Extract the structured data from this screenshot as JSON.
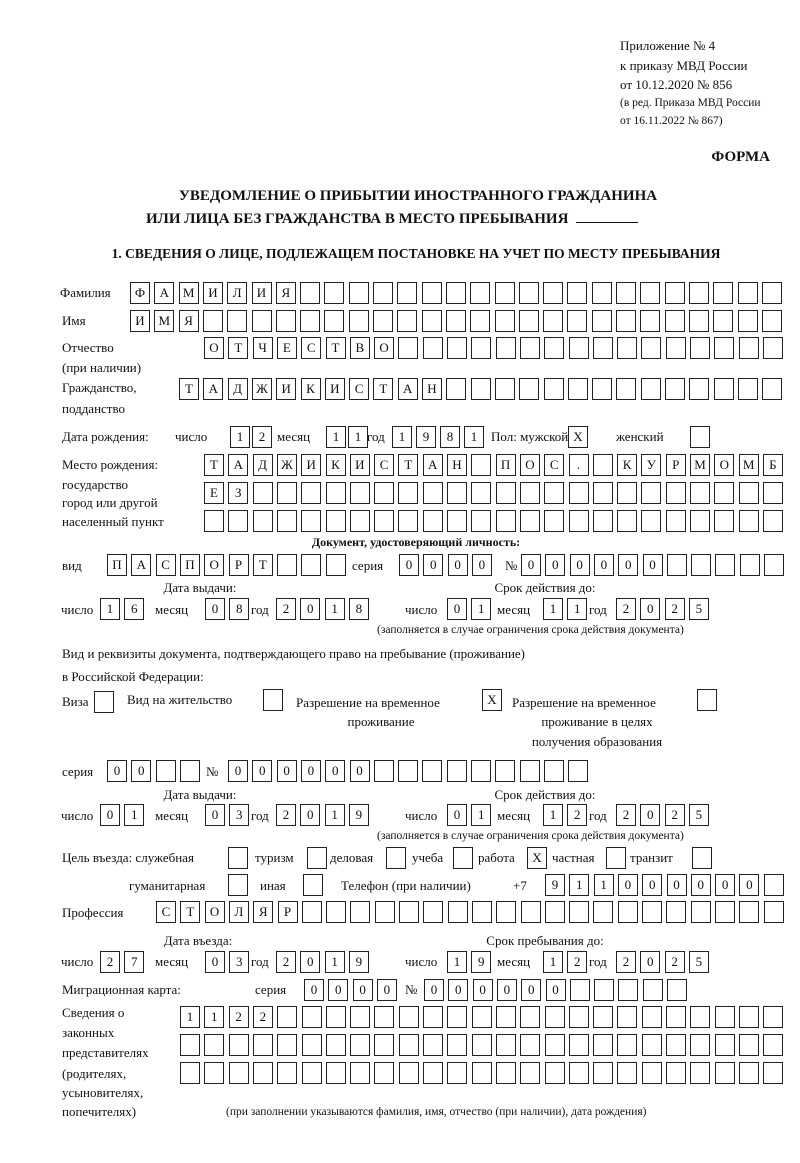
{
  "header": {
    "appendix": "Приложение № 4",
    "order": "к приказу МВД России",
    "order_date": "от 10.12.2020 № 856",
    "revision": "(в ред. Приказа МВД России",
    "revision_date": "от 16.11.2022 № 867)",
    "form_label": "ФОРМА",
    "title_line1": "УВЕДОМЛЕНИЕ О ПРИБЫТИИ ИНОСТРАННОГО ГРАЖДАНИНА",
    "title_line2": "ИЛИ ЛИЦА БЕЗ ГРАЖДАНСТВА В МЕСТО ПРЕБЫВАНИЯ",
    "section1": "1. СВЕДЕНИЯ О ЛИЦЕ, ПОДЛЕЖАЩЕМ ПОСТАНОВКЕ НА УЧЕТ ПО МЕСТУ ПРЕБЫВАНИЯ"
  },
  "labels": {
    "surname": "Фамилия",
    "name": "Имя",
    "patronymic": "Отчество",
    "patronymic_note": "(при наличии)",
    "citizenship": "Гражданство,",
    "citizenship2": "подданство",
    "birth_date": "Дата рождения:",
    "day": "число",
    "month": "месяц",
    "year": "год",
    "sex": "Пол: мужской",
    "female": "женский",
    "birth_place": "Место рождения:",
    "birth_place2": "государство",
    "birth_place3": "город или другой",
    "birth_place4": "населенный пункт",
    "id_doc": "Документ, удостоверяющий личность:",
    "kind": "вид",
    "series": "серия",
    "number": "№",
    "issue_date": "Дата выдачи:",
    "valid_until": "Срок действия до:",
    "validity_note": "(заполняется в случае ограничения срока действия документа)",
    "stay_doc": "Вид и реквизиты документа, подтверждающего право на пребывание (проживание)",
    "stay_doc2": "в Российской Федерации:",
    "visa": "Виза",
    "residence": "Вид на жительство",
    "temp_residence": "Разрешение на временное",
    "temp_residence2": "проживание",
    "temp_residence_edu": "Разрешение на временное",
    "temp_residence_edu2": "проживание в целях",
    "temp_residence_edu3": "получения образования",
    "purpose": "Цель въезда: служебная",
    "tourism": "туризм",
    "business": "деловая",
    "study": "учеба",
    "work": "работа",
    "private": "частная",
    "transit": "транзит",
    "humanitarian": "гуманитарная",
    "other": "иная",
    "phone": "Телефон (при наличии)",
    "phone_prefix": "+7",
    "profession": "Профессия",
    "entry_date": "Дата въезда:",
    "stay_until": "Срок пребывания до:",
    "migration_card": "Миграционная карта:",
    "reps1": "Сведения о",
    "reps2": "законных",
    "reps3": "представителях",
    "reps4": "(родителях,",
    "reps5": "усыновителях,",
    "reps6": "попечителях)",
    "reps_note": "(при заполнении указываются фамилия, имя, отчество (при наличии), дата рождения)"
  },
  "fields": {
    "surname": "ФАМИЛИЯ",
    "name": "ИМЯ",
    "patronymic": "ОТЧЕСТВО",
    "citizenship": "ТАДЖИКИСТАН",
    "birth_day": "12",
    "birth_month": "11",
    "birth_year": "1981",
    "sex_male": "X",
    "sex_female": "",
    "birth_place1": "ТАДЖИКИСТАН ПОС. КУРМОМБ",
    "birth_place2": "ЕЗ",
    "birth_place3": "",
    "id_kind": "ПАСПОРТ",
    "id_series": "0000",
    "id_number": "000000",
    "id_issue_day": "16",
    "id_issue_month": "08",
    "id_issue_year": "2018",
    "id_valid_day": "01",
    "id_valid_month": "11",
    "id_valid_year": "2025",
    "visa": "",
    "residence": "",
    "temp_residence": "X",
    "temp_residence_edu": "",
    "stay_series": "00",
    "stay_number": "000000",
    "stay_issue_day": "01",
    "stay_issue_month": "03",
    "stay_issue_year": "2019",
    "stay_valid_day": "01",
    "stay_valid_month": "12",
    "stay_valid_year": "2025",
    "purpose_official": "",
    "purpose_tourism": "",
    "purpose_business": "",
    "purpose_study": "",
    "purpose_work": "X",
    "purpose_private": "",
    "purpose_transit": "",
    "purpose_humanitarian": "",
    "purpose_other": "",
    "phone": "911000000",
    "profession": "СТОЛЯР",
    "entry_day": "27",
    "entry_month": "03",
    "entry_year": "2019",
    "stay_until_day": "19",
    "stay_until_month": "12",
    "stay_until_year": "2025",
    "card_series": "0000",
    "card_number": "000000",
    "reps1": "1122",
    "reps2": "",
    "reps3": ""
  }
}
